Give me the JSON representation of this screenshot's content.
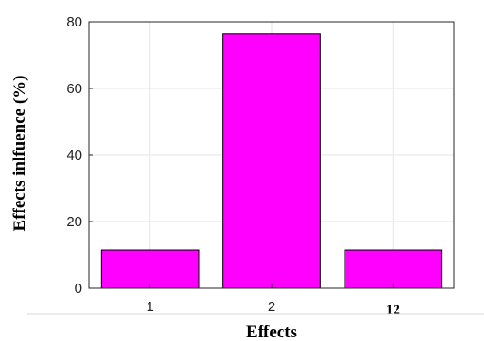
{
  "chart_data": {
    "type": "bar",
    "title": "",
    "xlabel": "Effects",
    "ylabel": "Effects inlfuence (%)",
    "categories": [
      "1",
      "2",
      "12"
    ],
    "values": [
      11.5,
      76.5,
      11.5
    ],
    "ylim": [
      0,
      80
    ],
    "yticks": [
      "0",
      "20",
      "40",
      "60",
      "80"
    ],
    "grid": true,
    "bar_color": "#ff00ff",
    "bar_edge_color": "#000000"
  }
}
